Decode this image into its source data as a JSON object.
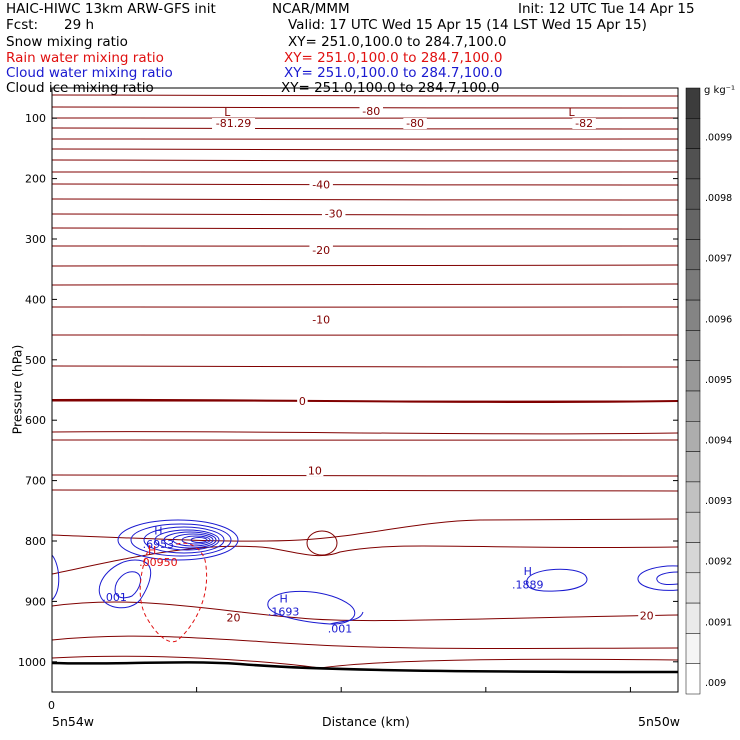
{
  "header": {
    "title": "HAIC-HIWC 13km ARW-GFS init",
    "org": "NCAR/MMM",
    "init": "Init: 12 UTC Tue 14 Apr 15",
    "fcst_label": "Fcst:",
    "fcst_value": "29 h",
    "valid": "Valid: 17 UTC Wed 15 Apr 15 (14 LST Wed 15 Apr 15)"
  },
  "fields": [
    {
      "name": "Snow mixing ratio",
      "xy": "",
      "color": "#000000"
    },
    {
      "name": "Rain water mixing ratio",
      "xy": "XY= 251.0,100.0 to 284.7,100.0",
      "color": "#e01010"
    },
    {
      "name": "Cloud water mixing ratio",
      "xy": "XY= 251.0,100.0 to 284.7,100.0",
      "color": "#1a1ad0"
    },
    {
      "name": "Cloud ice mixing ratio",
      "xy": "XY= 251.0,100.0 to 284.7,100.0",
      "color": "#000000"
    }
  ],
  "snow_xy": "XY= 251.0,100.0 to 284.7,100.0",
  "chart_data": {
    "type": "contour-cross-section",
    "ylabel": "Pressure (hPa)",
    "xlabel": "Distance (km)",
    "y_axis_direction": "inverted",
    "ylim": [
      1050,
      50
    ],
    "xlim": [
      0,
      1
    ],
    "y_ticks": [
      100,
      200,
      300,
      400,
      500,
      600,
      700,
      800,
      900,
      1000
    ],
    "x_tick_zero": "0",
    "x_left_label": "5n54w",
    "x_right_label": "5n50w",
    "temperature_contour_labels": [
      {
        "text": "-81.29",
        "x": 0.29,
        "p": 108
      },
      {
        "text": "-80",
        "x": 0.51,
        "p": 88
      },
      {
        "text": "-80",
        "x": 0.58,
        "p": 108
      },
      {
        "text": "-82",
        "x": 0.85,
        "p": 108
      },
      {
        "text": "-40",
        "x": 0.43,
        "p": 210
      },
      {
        "text": "-30",
        "x": 0.45,
        "p": 258
      },
      {
        "text": "-20",
        "x": 0.43,
        "p": 318
      },
      {
        "text": "-10",
        "x": 0.43,
        "p": 433
      },
      {
        "text": "0",
        "x": 0.4,
        "p": 568
      },
      {
        "text": "10",
        "x": 0.42,
        "p": 683
      },
      {
        "text": "20",
        "x": 0.29,
        "p": 927
      },
      {
        "text": "20",
        "x": 0.95,
        "p": 923
      }
    ],
    "extrema_markers": [
      {
        "text": "L",
        "x": 0.28,
        "p": 90,
        "color": "#800000"
      },
      {
        "text": "L",
        "x": 0.83,
        "p": 90,
        "color": "#800000"
      }
    ],
    "cloud_water_labels": [
      {
        "text": "H",
        "x": 0.17,
        "p": 783
      },
      {
        "text": ".6953",
        "x": 0.17,
        "p": 805
      },
      {
        "text": ".001",
        "x": 0.1,
        "p": 893
      },
      {
        "text": "H",
        "x": 0.37,
        "p": 895
      },
      {
        "text": ".1693",
        "x": 0.37,
        "p": 917
      },
      {
        "text": ".001",
        "x": 0.46,
        "p": 945
      },
      {
        "text": "H",
        "x": 0.76,
        "p": 850
      },
      {
        "text": ".1889",
        "x": 0.76,
        "p": 872
      }
    ],
    "rain_water_labels": [
      {
        "text": "H",
        "x": 0.16,
        "p": 815
      },
      {
        "text": ".00950",
        "x": 0.17,
        "p": 835
      }
    ],
    "colorbar": {
      "unit": "g kg⁻¹",
      "ticks": [
        ".0099",
        ".0098",
        ".0097",
        ".0096",
        ".0095",
        ".0094",
        ".0093",
        ".0092",
        ".0091",
        ".009"
      ]
    }
  }
}
